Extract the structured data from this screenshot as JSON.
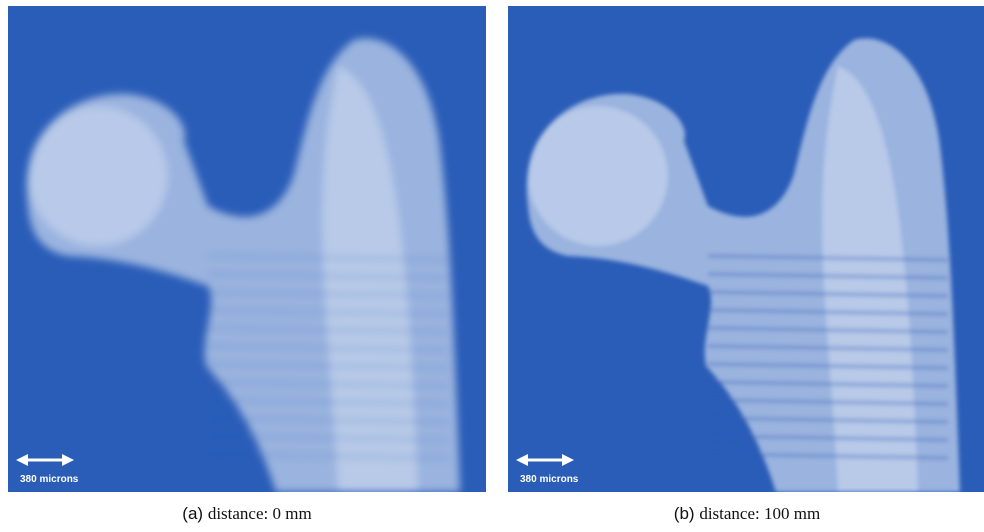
{
  "panels": [
    {
      "label": "(a)",
      "caption": "distance: 0 mm",
      "scale_bar": "380 microns"
    },
    {
      "label": "(b)",
      "caption": "distance: 100 mm",
      "scale_bar": "380 microns"
    }
  ]
}
